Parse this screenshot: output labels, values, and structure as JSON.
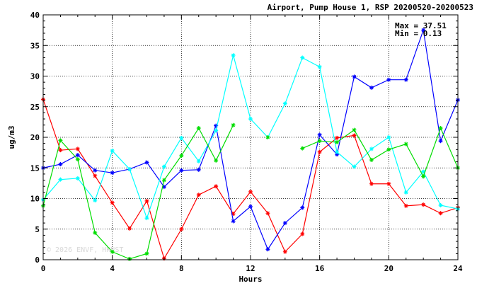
{
  "chart_data": {
    "type": "line",
    "title": "Airport, Pump House 1, RSP 20200520-20200523",
    "xlabel": "Hours",
    "ylabel": "ug/m3",
    "xlim": [
      0,
      24
    ],
    "ylim": [
      0,
      40
    ],
    "x_ticks": [
      0,
      4,
      8,
      12,
      16,
      20,
      24
    ],
    "y_ticks": [
      0,
      5,
      10,
      15,
      20,
      25,
      30,
      35,
      40
    ],
    "grid": true,
    "max_label": "Max = 37.51",
    "min_label": "Min = 0.13",
    "watermark": "© 2026  ENVF, HKUST",
    "x": [
      0,
      1,
      2,
      3,
      4,
      5,
      6,
      7,
      8,
      9,
      10,
      11,
      12,
      13,
      14,
      15,
      16,
      17,
      18,
      19,
      20,
      21,
      22,
      23,
      24
    ],
    "series": [
      {
        "color": "#ff0000",
        "values": [
          26.2,
          17.9,
          18.1,
          13.7,
          9.3,
          5.1,
          9.6,
          0.2,
          5.0,
          10.6,
          12.0,
          7.5,
          11.1,
          7.6,
          1.3,
          4.2,
          17.6,
          19.9,
          20.3,
          12.4,
          12.4,
          8.8,
          9.0,
          7.6,
          8.5
        ]
      },
      {
        "color": "#0000ff",
        "values": [
          15.0,
          15.6,
          17.1,
          14.6,
          14.2,
          14.8,
          15.9,
          11.9,
          14.6,
          14.7,
          21.9,
          6.3,
          8.7,
          1.7,
          6.0,
          8.5,
          20.4,
          17.2,
          29.9,
          28.1,
          29.4,
          29.4,
          37.51,
          19.4,
          26.1
        ]
      },
      {
        "color": "#00ffff",
        "values": [
          9.8,
          13.1,
          13.3,
          9.7,
          17.8,
          14.8,
          6.8,
          15.2,
          19.9,
          16.1,
          21.1,
          33.4,
          23.0,
          20.0,
          25.5,
          33.0,
          31.5,
          17.6,
          15.2,
          18.1,
          20.0,
          11.0,
          14.4,
          8.9,
          8.3
        ]
      },
      {
        "color": "#00dd00",
        "values": [
          8.8,
          19.5,
          16.4,
          4.4,
          1.3,
          0.13,
          1.0,
          13.0,
          17.0,
          21.5,
          16.2,
          22.0,
          null,
          20.0,
          null,
          18.2,
          19.4,
          19.2,
          21.2,
          16.3,
          18.0,
          18.9,
          13.6,
          21.5,
          15.0
        ]
      }
    ]
  }
}
